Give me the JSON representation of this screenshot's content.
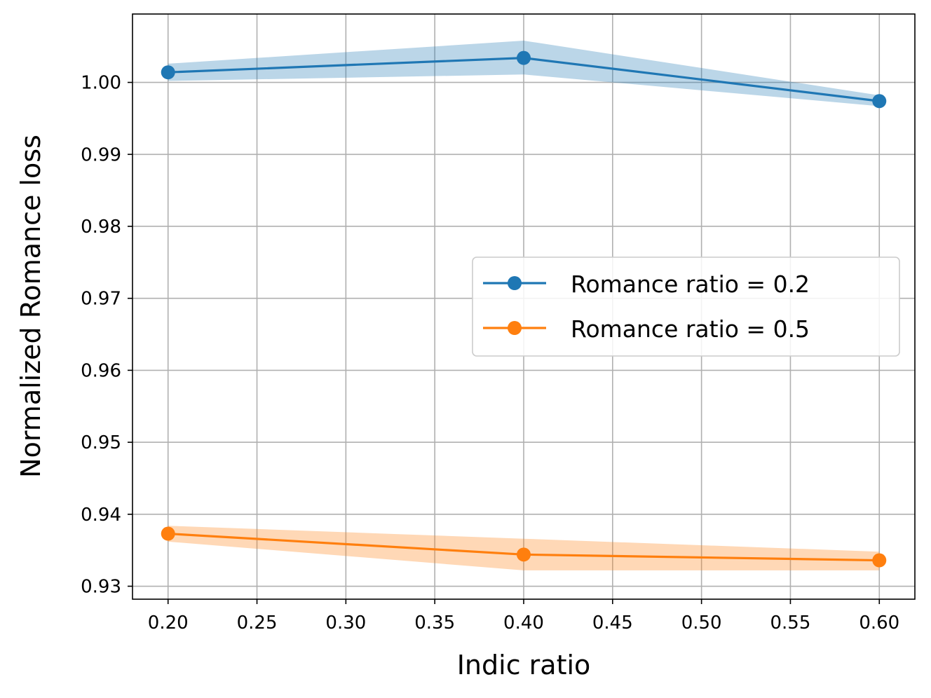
{
  "chart_data": {
    "type": "line",
    "title": "",
    "xlabel": "Indic ratio",
    "ylabel": "Normalized Romance loss",
    "xlim": [
      0.18,
      0.62
    ],
    "ylim": [
      0.9282,
      1.0095
    ],
    "xticks": [
      0.2,
      0.25,
      0.3,
      0.35,
      0.4,
      0.45,
      0.5,
      0.55,
      0.6
    ],
    "xtick_labels": [
      "0.20",
      "0.25",
      "0.30",
      "0.35",
      "0.40",
      "0.45",
      "0.50",
      "0.55",
      "0.60"
    ],
    "yticks": [
      0.93,
      0.94,
      0.95,
      0.96,
      0.97,
      0.98,
      0.99,
      1.0
    ],
    "ytick_labels": [
      "0.93",
      "0.94",
      "0.95",
      "0.96",
      "0.97",
      "0.98",
      "0.99",
      "1.00"
    ],
    "grid": true,
    "legend_position": "center-right",
    "series": [
      {
        "name": "Romance ratio = 0.2",
        "color": "#1f77b4",
        "band_color": "#1f77b4",
        "x": [
          0.2,
          0.4,
          0.6
        ],
        "y": [
          1.0014,
          1.0034,
          0.9974
        ],
        "y_lower": [
          1.0002,
          1.0011,
          0.9967
        ],
        "y_upper": [
          1.0026,
          1.0058,
          0.9982
        ]
      },
      {
        "name": "Romance ratio = 0.5",
        "color": "#ff7f0e",
        "band_color": "#ff7f0e",
        "x": [
          0.2,
          0.4,
          0.6
        ],
        "y": [
          0.9373,
          0.9344,
          0.9336
        ],
        "y_lower": [
          0.9362,
          0.9322,
          0.9322
        ],
        "y_upper": [
          0.9384,
          0.9366,
          0.9348
        ]
      }
    ]
  }
}
